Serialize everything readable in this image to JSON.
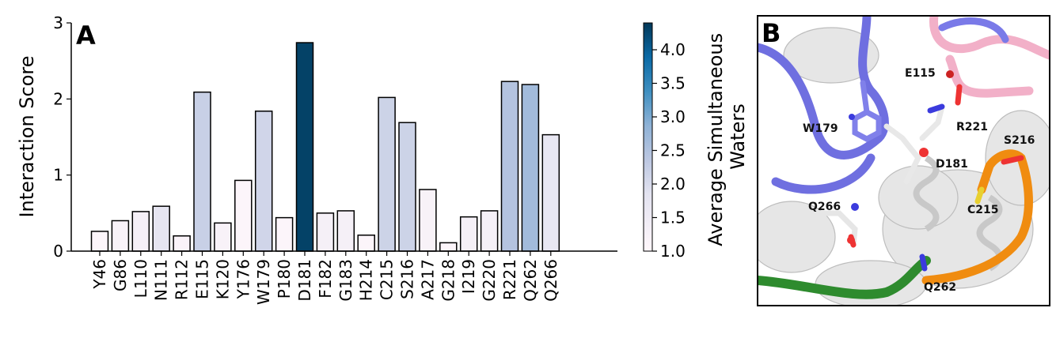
{
  "chart_data": {
    "type": "bar",
    "panel_label": "A",
    "ylabel": "Interaction Score",
    "ylim": [
      0,
      3
    ],
    "yticks": [
      0,
      1,
      2,
      3
    ],
    "categories": [
      "Y46",
      "G86",
      "L110",
      "N111",
      "R112",
      "E115",
      "K120",
      "Y176",
      "W179",
      "P180",
      "D181",
      "F182",
      "G183",
      "H214",
      "C215",
      "S216",
      "A217",
      "G218",
      "I219",
      "G220",
      "R221",
      "Q262",
      "Q266"
    ],
    "values": [
      0.26,
      0.4,
      0.52,
      0.59,
      0.2,
      2.09,
      0.37,
      0.93,
      1.84,
      0.44,
      2.74,
      0.5,
      0.53,
      0.21,
      2.02,
      1.69,
      0.81,
      0.11,
      0.45,
      0.53,
      2.23,
      2.19,
      1.53
    ],
    "avg_waters": [
      1.1,
      1.2,
      1.3,
      1.75,
      1.15,
      2.2,
      1.2,
      1.1,
      2.1,
      1.1,
      4.3,
      1.3,
      1.3,
      1.1,
      2.15,
      2.15,
      1.2,
      1.1,
      1.3,
      1.3,
      2.45,
      2.65,
      1.7
    ],
    "colorbar": {
      "label": "Average Simultaneous Waters",
      "label_lines": [
        "Average Simultaneous",
        "Waters"
      ],
      "range": [
        1.0,
        4.4
      ],
      "ticks": [
        1.0,
        1.5,
        2.0,
        2.5,
        3.0,
        3.5,
        4.0
      ],
      "tick_labels": [
        "1.0",
        "1.5",
        "2.0",
        "2.5",
        "3.0",
        "3.5",
        "4.0"
      ],
      "colormap": "PuBu"
    }
  },
  "structure_panel": {
    "panel_label": "B",
    "residue_labels": [
      "E115",
      "W179",
      "R221",
      "S216",
      "D181",
      "C215",
      "Q266",
      "Q262"
    ],
    "colors": {
      "helix_gray": "#d9d9d9",
      "loop_blue": "#7070e0",
      "pink": "#f4b6cc",
      "orange": "#f08c10",
      "green": "#2e8b2e"
    }
  }
}
